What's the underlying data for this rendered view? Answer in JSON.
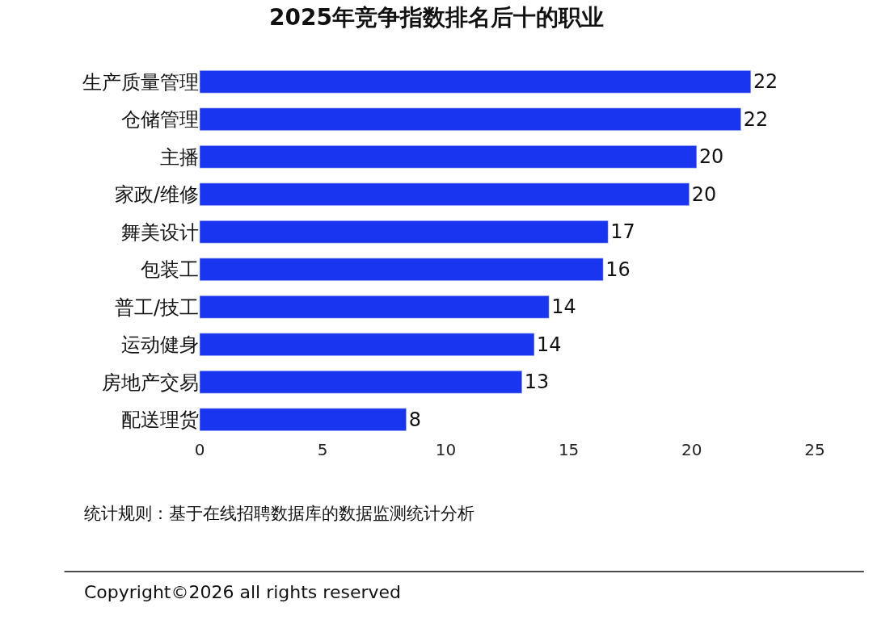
{
  "chart_data": {
    "type": "bar",
    "orientation": "horizontal",
    "title": "2025年竞争指数排名后十的职业",
    "categories": [
      "生产质量管理",
      "仓储管理",
      "主播",
      "家政/维修",
      "舞美设计",
      "包装工",
      "普工/技工",
      "运动健身",
      "房地产交易",
      "配送理货"
    ],
    "values": [
      22.4,
      22.0,
      20.2,
      19.9,
      16.6,
      16.4,
      14.2,
      13.6,
      13.1,
      8.4
    ],
    "value_labels": [
      "22",
      "22",
      "20",
      "20",
      "17",
      "16",
      "14",
      "14",
      "13",
      "8"
    ],
    "color": "#1a35f0",
    "xlim": [
      0,
      25
    ],
    "xticks": [
      0,
      5,
      10,
      15,
      20,
      25
    ],
    "annotations": [
      "统计规则：基于在线招聘数据库的数据监测统计分析",
      "Copyright©2026 all rights reserved"
    ]
  }
}
